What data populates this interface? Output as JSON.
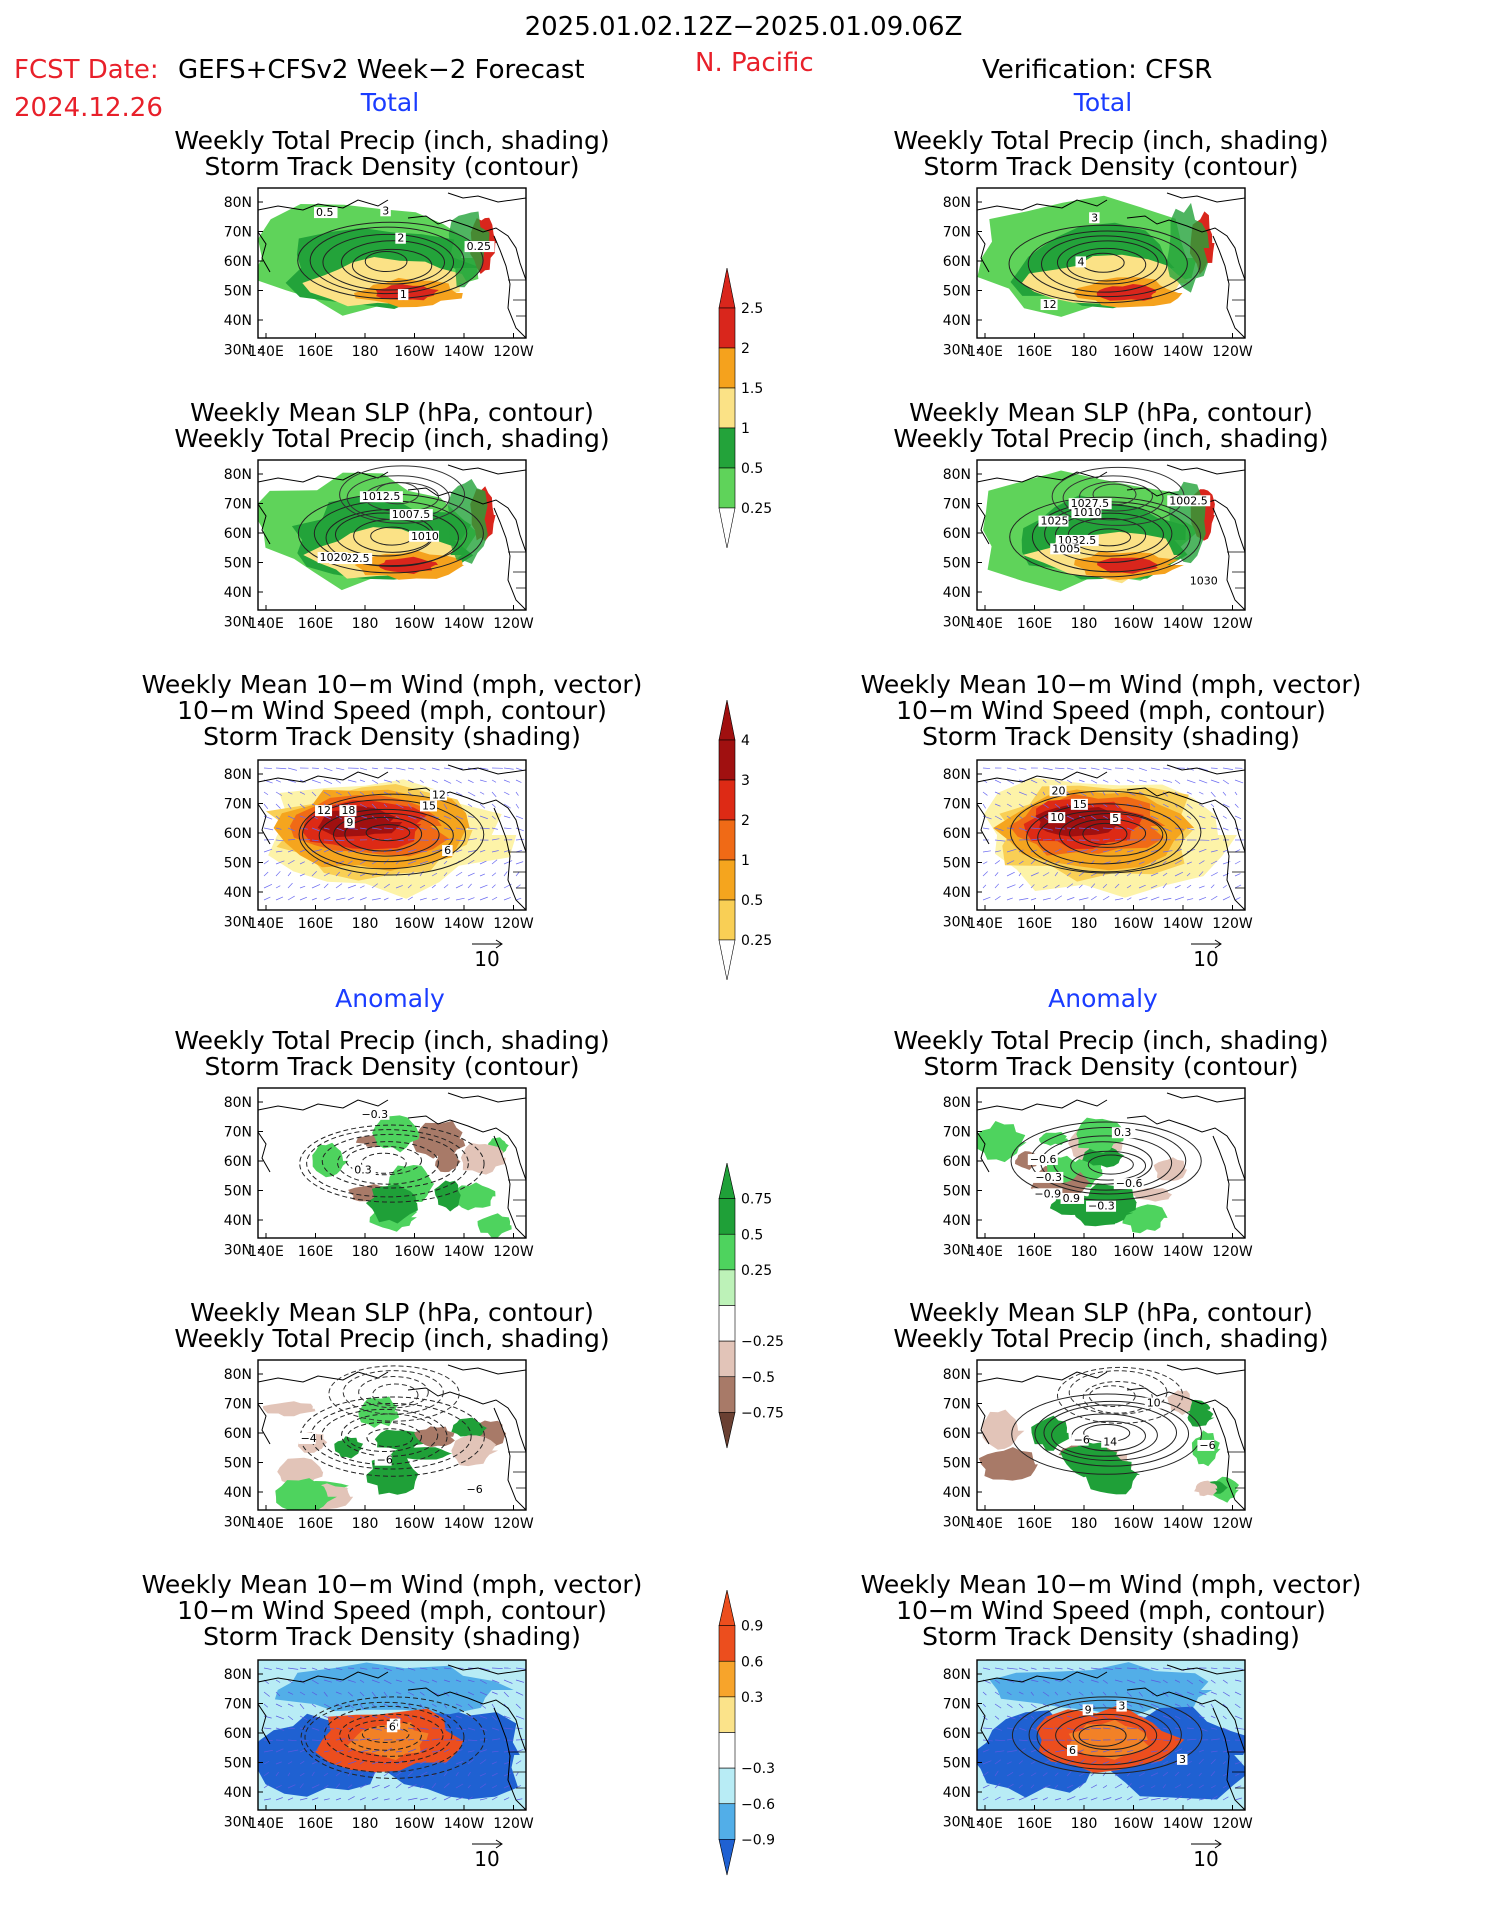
{
  "header": {
    "date_range": "2025.01.02.12Z−2025.01.09.06Z",
    "fcst_label": "FCST Date:",
    "fcst_date": "2024.12.26",
    "model": "GEFS+CFSv2 Week−2 Forecast",
    "region": "N. Pacific",
    "verification": "Verification: CFSR"
  },
  "sections": {
    "total": "Total",
    "anomaly": "Anomaly"
  },
  "titles": {
    "precip_storm": [
      "Weekly Total Precip (inch, shading)",
      "Storm Track Density (contour)"
    ],
    "slp_precip": [
      "Weekly Mean SLP (hPa, contour)",
      "Weekly Total Precip (inch, shading)"
    ],
    "wind_storm": [
      "Weekly Mean 10−m Wind (mph, vector)",
      "10−m Wind Speed (mph, contour)",
      "Storm Track Density (shading)"
    ]
  },
  "axes": {
    "lat_labels": [
      "80N",
      "70N",
      "60N",
      "50N",
      "40N",
      "30N"
    ],
    "lon_labels": [
      "140E",
      "160E",
      "180",
      "160W",
      "140W",
      "120W"
    ]
  },
  "vector_ref": "10",
  "colorbars": {
    "precip_total": {
      "labels": [
        "2.5",
        "2",
        "1.5",
        "1",
        "0.5",
        "0.25"
      ],
      "colors": [
        "#d9261c",
        "#f5a21d",
        "#fbe286",
        "#23a33a",
        "#5fd35a",
        "#b8f2ae"
      ]
    },
    "storm_total": {
      "labels": [
        "4",
        "3",
        "2",
        "1",
        "0.5",
        "0.25"
      ],
      "colors": [
        "#a01010",
        "#dd2a15",
        "#f06a16",
        "#f5a51e",
        "#f9cf55",
        "#fdf3a8"
      ]
    },
    "precip_anom": {
      "labels": [
        "0.75",
        "0.5",
        "0.25",
        "−0.25",
        "−0.5",
        "−0.75"
      ],
      "colors": [
        "#1fa038",
        "#4ed35e",
        "#bdf2b8",
        "#ffffff",
        "#e2c4b8",
        "#a87a68",
        "#6a4032"
      ]
    },
    "storm_anom": {
      "labels": [
        "0.9",
        "0.6",
        "0.3",
        "−0.3",
        "−0.6",
        "−0.9"
      ],
      "colors": [
        "#ec4e1e",
        "#f7a42b",
        "#fbe38a",
        "#ffffff",
        "#b8ecf5",
        "#52aee8",
        "#1f61d2"
      ]
    }
  },
  "panels": [
    {
      "id": "fcst-total-precip",
      "kind": "precip",
      "labels": [
        "0.5",
        "2",
        "3",
        "1",
        "0.25"
      ]
    },
    {
      "id": "obs-total-precip",
      "kind": "precip",
      "labels": [
        "12",
        "4",
        "3"
      ]
    },
    {
      "id": "fcst-total-slp",
      "kind": "precip",
      "labels": [
        "1022.5",
        "1020",
        "1012.5",
        "1010",
        "1007.5"
      ]
    },
    {
      "id": "obs-total-slp",
      "kind": "precip",
      "labels": [
        "1032.5",
        "1030",
        "1027.5",
        "1025",
        "1010",
        "1005",
        "1002.5"
      ]
    },
    {
      "id": "fcst-total-wind",
      "kind": "storm",
      "labels": [
        "9",
        "12",
        "18",
        "15",
        "12",
        "6"
      ]
    },
    {
      "id": "obs-total-wind",
      "kind": "storm",
      "labels": [
        "15",
        "5",
        "10",
        "20"
      ]
    },
    {
      "id": "fcst-anom-precip",
      "kind": "precip-anom",
      "labels": [
        "−0.3",
        "0.3"
      ]
    },
    {
      "id": "obs-anom-precip",
      "kind": "precip-anom",
      "labels": [
        "−0.3",
        "−0.9",
        "−0.6",
        "0.9",
        "0.3",
        "−0.6",
        "−0.3"
      ]
    },
    {
      "id": "fcst-anom-slp",
      "kind": "precip-anom",
      "labels": [
        "−6",
        "−6",
        "−4"
      ]
    },
    {
      "id": "obs-anom-slp",
      "kind": "precip-anom",
      "labels": [
        "14",
        "10",
        "−6",
        "−6"
      ]
    },
    {
      "id": "fcst-anom-wind",
      "kind": "storm-anom",
      "labels": [
        "6",
        "6"
      ]
    },
    {
      "id": "obs-anom-wind",
      "kind": "storm-anom",
      "labels": [
        "3",
        "6",
        "3",
        "9"
      ]
    }
  ]
}
